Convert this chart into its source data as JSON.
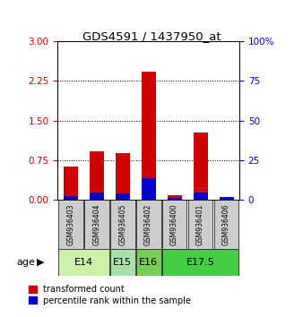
{
  "title": "GDS4591 / 1437950_at",
  "samples": [
    "GSM936403",
    "GSM936404",
    "GSM936405",
    "GSM936402",
    "GSM936400",
    "GSM936401",
    "GSM936406"
  ],
  "transformed_count": [
    0.62,
    0.92,
    0.88,
    2.42,
    0.08,
    1.28,
    0.04
  ],
  "percentile_rank": [
    0.07,
    0.14,
    0.12,
    0.4,
    0.04,
    0.14,
    0.05
  ],
  "age_extents": [
    {
      "label": "E14",
      "start": 0,
      "end": 1,
      "color": "#ccf0aa"
    },
    {
      "label": "E15",
      "start": 2,
      "end": 2,
      "color": "#aae0aa"
    },
    {
      "label": "E16",
      "start": 3,
      "end": 3,
      "color": "#77cc55"
    },
    {
      "label": "E17.5",
      "start": 4,
      "end": 6,
      "color": "#44cc44"
    }
  ],
  "ylim_left": [
    0,
    3
  ],
  "ylim_right": [
    0,
    100
  ],
  "yticks_left": [
    0,
    0.75,
    1.5,
    2.25,
    3
  ],
  "yticks_right": [
    0,
    25,
    50,
    75,
    100
  ],
  "bar_color_red": "#cc0000",
  "bar_color_blue": "#0000cc",
  "plot_bg": "#ffffff",
  "legend_red": "transformed count",
  "legend_blue": "percentile rank within the sample",
  "tick_label_color_left": "#cc0000",
  "tick_label_color_right": "#0000cc",
  "sample_box_color": "#cccccc",
  "age_label": "age"
}
